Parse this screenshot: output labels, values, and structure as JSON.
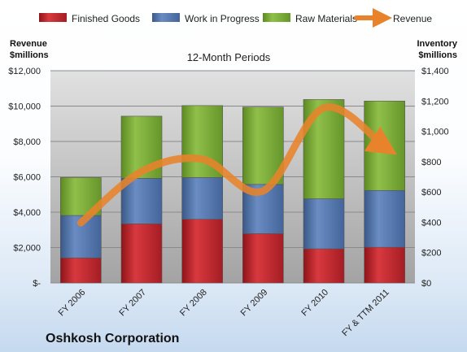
{
  "chart_data": {
    "type": "bar",
    "stacked": true,
    "subtitle": "12-Month Periods",
    "company": "Oshkosh Corporation",
    "categories": [
      "FY 2006",
      "FY 2007",
      "FY 2008",
      "FY 2009",
      "FY 2010",
      "FY & TTM 2011"
    ],
    "left_axis": {
      "label_line1": "Revenue",
      "label_line2": "$millions",
      "ylim": [
        0,
        12000
      ],
      "ticks": [
        0,
        2000,
        4000,
        6000,
        8000,
        10000,
        12000
      ],
      "tick_labels": [
        "$-",
        "$2,000",
        "$4,000",
        "$6,000",
        "$8,000",
        "$10,000",
        "$12,000"
      ]
    },
    "right_axis": {
      "label_line1": "Inventory",
      "label_line2": "$millions",
      "ylim": [
        0,
        1400
      ],
      "ticks": [
        0,
        200,
        400,
        600,
        800,
        1000,
        1200,
        1400
      ],
      "tick_labels": [
        "$0",
        "$200",
        "$400",
        "$600",
        "$800",
        "$1,000",
        "$1,200",
        "$1,400"
      ]
    },
    "series": [
      {
        "name": "Finished Goods",
        "axis": "right",
        "color": "#c0272d",
        "values": [
          165,
          390,
          420,
          325,
          225,
          235
        ]
      },
      {
        "name": "Work in Progress",
        "axis": "right",
        "color": "#4f73a8",
        "values": [
          280,
          300,
          275,
          325,
          330,
          375
        ]
      },
      {
        "name": "Raw Materials",
        "axis": "right",
        "color": "#77a532",
        "values": [
          250,
          410,
          475,
          510,
          655,
          590
        ]
      },
      {
        "name": "Revenue",
        "axis": "left",
        "type": "line",
        "color": "#e8832b",
        "values": [
          3400,
          6300,
          7000,
          5200,
          9900,
          7700
        ]
      }
    ],
    "grid": true,
    "legend_position": "top"
  }
}
